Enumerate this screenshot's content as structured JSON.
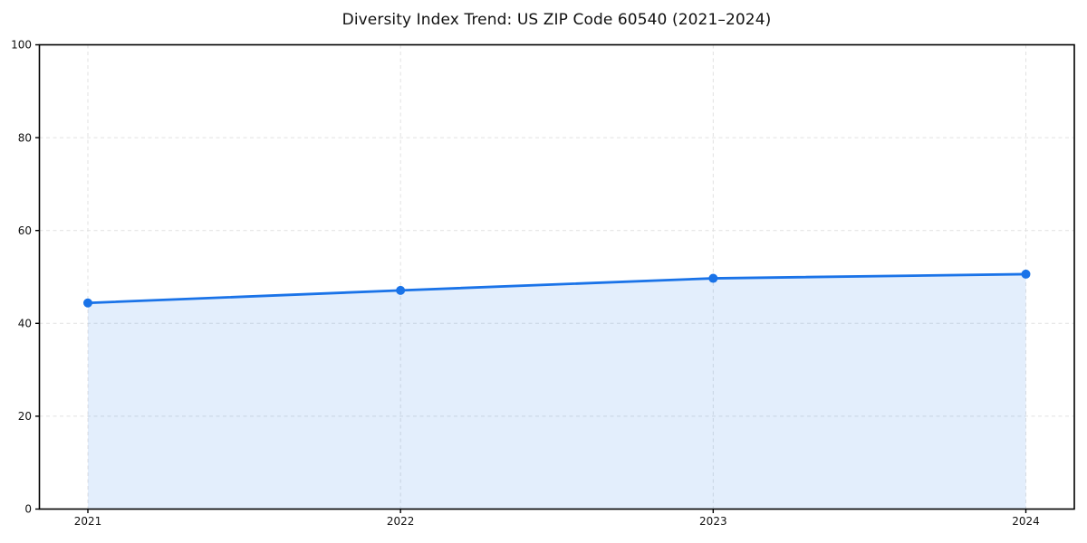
{
  "chart_data": {
    "type": "area",
    "title": "Diversity Index Trend: US ZIP Code 60540 (2021–2024)",
    "x": [
      "2021",
      "2022",
      "2023",
      "2024"
    ],
    "series": [
      {
        "name": "Diversity Index",
        "values": [
          44.4,
          47.1,
          49.7,
          50.6
        ]
      }
    ],
    "xlabel": "",
    "ylabel": "",
    "ylim": [
      0,
      100
    ],
    "yticks": [
      0,
      20,
      40,
      60,
      80,
      100
    ],
    "x_tick_labels": [
      "2021",
      "2022",
      "2023",
      "2024"
    ],
    "y_tick_labels": [
      "0",
      "20",
      "40",
      "60",
      "80",
      "100"
    ],
    "grid": true,
    "grid_style": "dashed",
    "legend": "none",
    "marker": "circle",
    "colors": {
      "line": "#1a73e8",
      "marker": "#1a73e8",
      "fill": "rgba(26,115,232,0.12)",
      "grid": "#e1e1e1",
      "spine": "#000000",
      "tick_text": "#111111",
      "title_text": "#111111",
      "background": "#ffffff"
    }
  }
}
